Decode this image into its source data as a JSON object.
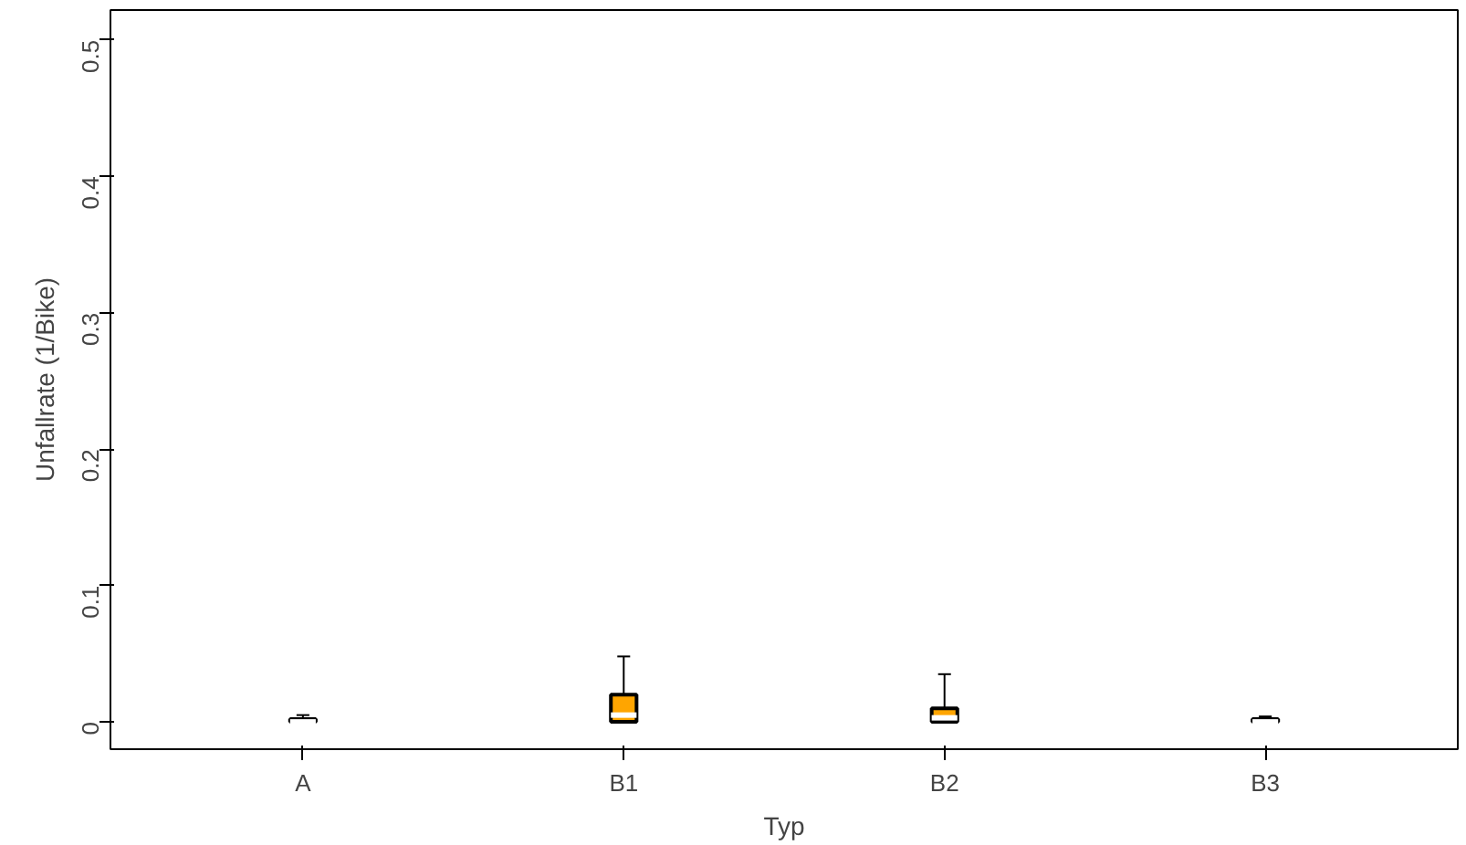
{
  "chart_data": {
    "type": "box",
    "xlabel": "Typ",
    "ylabel": "Unfallrate (1/Bike)",
    "categories": [
      "A",
      "B1",
      "B2",
      "B3"
    ],
    "boxes": [
      {
        "low": 0,
        "q1": 0,
        "median": 0,
        "q3": 0.002,
        "high": 0.005
      },
      {
        "low": 0,
        "q1": 0,
        "median": 0.005,
        "q3": 0.02,
        "high": 0.048
      },
      {
        "low": 0,
        "q1": 0,
        "median": 0.003,
        "q3": 0.01,
        "high": 0.035
      },
      {
        "low": 0,
        "q1": 0,
        "median": 0,
        "q3": 0.002,
        "high": 0.004
      }
    ],
    "color": "#ffa500",
    "ylim": [
      -0.02,
      0.522
    ],
    "yticks": [
      0,
      0.1,
      0.2,
      0.3,
      0.4,
      0.5
    ],
    "grid": false
  }
}
